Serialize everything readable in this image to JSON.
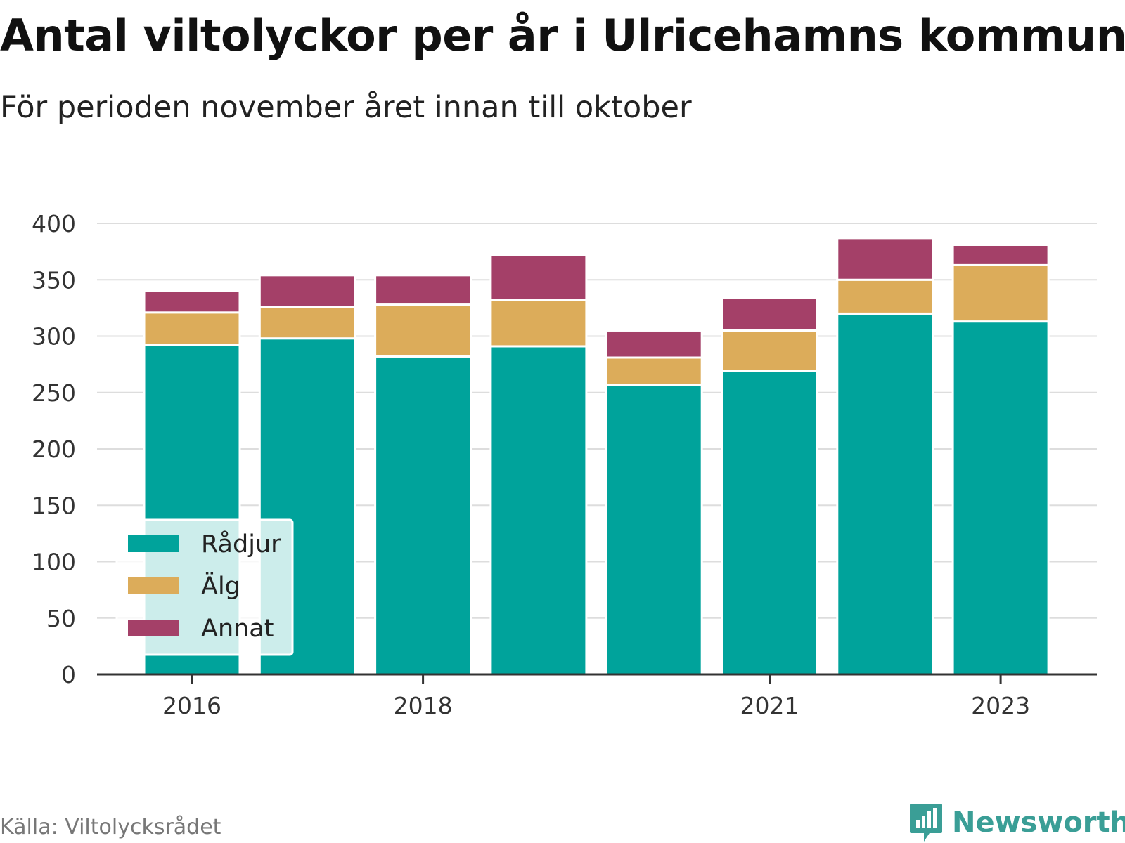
{
  "title": "Antal viltolyckor per år i Ulricehamns kommun",
  "subtitle": "För perioden november året innan till oktober",
  "source": "Källa: Viltolycksrådet",
  "brand": {
    "name": "Newsworthy",
    "icon": "newsworthy-logo-icon",
    "color": "#3a9e96"
  },
  "chart_data": {
    "type": "bar",
    "stacked": true,
    "categories": [
      "2016",
      "2017",
      "2018",
      "2019",
      "2020",
      "2021",
      "2022",
      "2023"
    ],
    "x_tick_labels": [
      "2016",
      "2018",
      "2021",
      "2023"
    ],
    "series": [
      {
        "name": "Rådjur",
        "color": "#00a39b",
        "values": [
          292,
          298,
          282,
          291,
          257,
          269,
          320,
          313
        ]
      },
      {
        "name": "Älg",
        "color": "#dcac5a",
        "values": [
          29,
          28,
          46,
          41,
          24,
          36,
          30,
          50
        ]
      },
      {
        "name": "Annat",
        "color": "#a44068",
        "values": [
          19,
          28,
          26,
          40,
          24,
          29,
          37,
          18
        ]
      }
    ],
    "ylim": [
      0,
      400
    ],
    "y_ticks": [
      0,
      50,
      100,
      150,
      200,
      250,
      300,
      350,
      400
    ],
    "grid": true,
    "legend_position": "bottom-left",
    "xlabel": "",
    "ylabel": ""
  }
}
